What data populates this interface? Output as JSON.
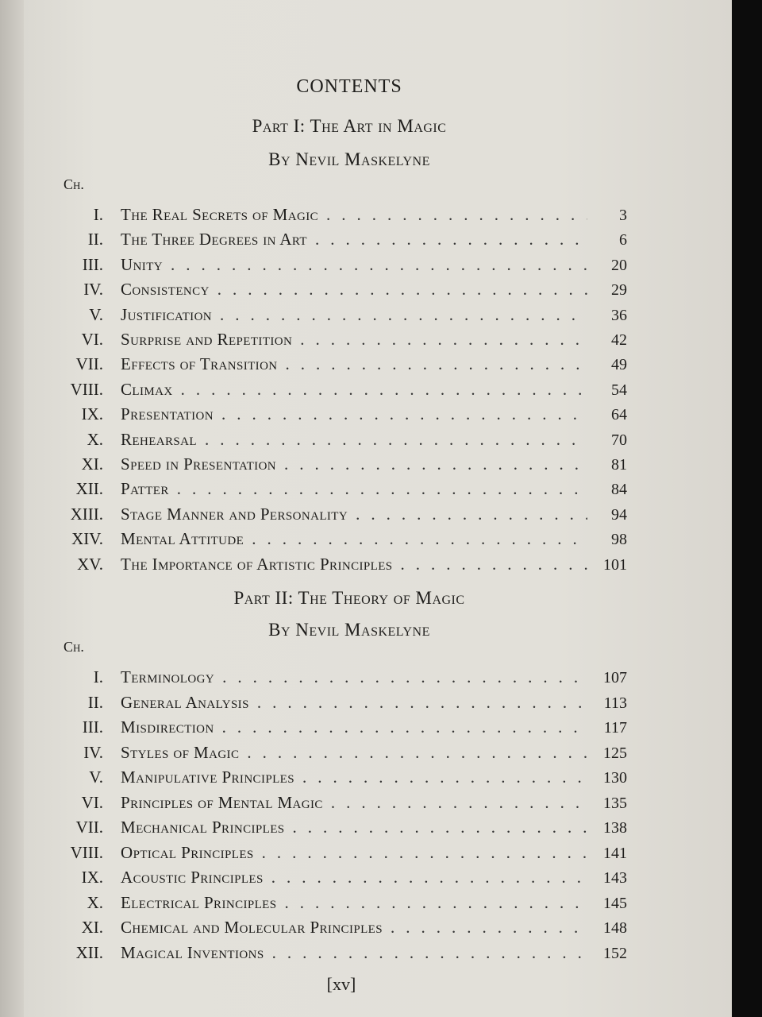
{
  "heading": "CONTENTS",
  "parts": [
    {
      "title": "Part I: The Art in Magic",
      "author": "By Nevil Maskelyne",
      "ch_label": "Ch.",
      "entries": [
        {
          "num": "I.",
          "title": "The Real Secrets of Magic",
          "page": "3"
        },
        {
          "num": "II.",
          "title": "The Three Degrees in Art",
          "page": "6"
        },
        {
          "num": "III.",
          "title": "Unity",
          "page": "20"
        },
        {
          "num": "IV.",
          "title": "Consistency",
          "page": "29"
        },
        {
          "num": "V.",
          "title": "Justification",
          "page": "36"
        },
        {
          "num": "VI.",
          "title": "Surprise and Repetition",
          "page": "42"
        },
        {
          "num": "VII.",
          "title": "Effects of Transition",
          "page": "49"
        },
        {
          "num": "VIII.",
          "title": "Climax",
          "page": "54"
        },
        {
          "num": "IX.",
          "title": "Presentation",
          "page": "64"
        },
        {
          "num": "X.",
          "title": "Rehearsal",
          "page": "70"
        },
        {
          "num": "XI.",
          "title": "Speed in Presentation",
          "page": "81"
        },
        {
          "num": "XII.",
          "title": "Patter",
          "page": "84"
        },
        {
          "num": "XIII.",
          "title": "Stage Manner and Personality",
          "page": "94"
        },
        {
          "num": "XIV.",
          "title": "Mental Attitude",
          "page": "98"
        },
        {
          "num": "XV.",
          "title": "The Importance of Artistic Principles",
          "page": "101"
        }
      ]
    },
    {
      "title": "Part II: The Theory of Magic",
      "author": "By Nevil Maskelyne",
      "ch_label": "Ch.",
      "entries": [
        {
          "num": "I.",
          "title": "Terminology",
          "page": "107"
        },
        {
          "num": "II.",
          "title": "General Analysis",
          "page": "113"
        },
        {
          "num": "III.",
          "title": "Misdirection",
          "page": "117"
        },
        {
          "num": "IV.",
          "title": "Styles of Magic",
          "page": "125"
        },
        {
          "num": "V.",
          "title": "Manipulative Principles",
          "page": "130"
        },
        {
          "num": "VI.",
          "title": "Principles of Mental Magic",
          "page": "135"
        },
        {
          "num": "VII.",
          "title": "Mechanical Principles",
          "page": "138"
        },
        {
          "num": "VIII.",
          "title": "Optical Principles",
          "page": "141"
        },
        {
          "num": "IX.",
          "title": "Acoustic Principles",
          "page": "143"
        },
        {
          "num": "X.",
          "title": "Electrical Principles",
          "page": "145"
        },
        {
          "num": "XI.",
          "title": "Chemical and Molecular Principles",
          "page": "148"
        },
        {
          "num": "XII.",
          "title": "Magical Inventions",
          "page": "152"
        }
      ]
    }
  ],
  "folio": "[xv]"
}
